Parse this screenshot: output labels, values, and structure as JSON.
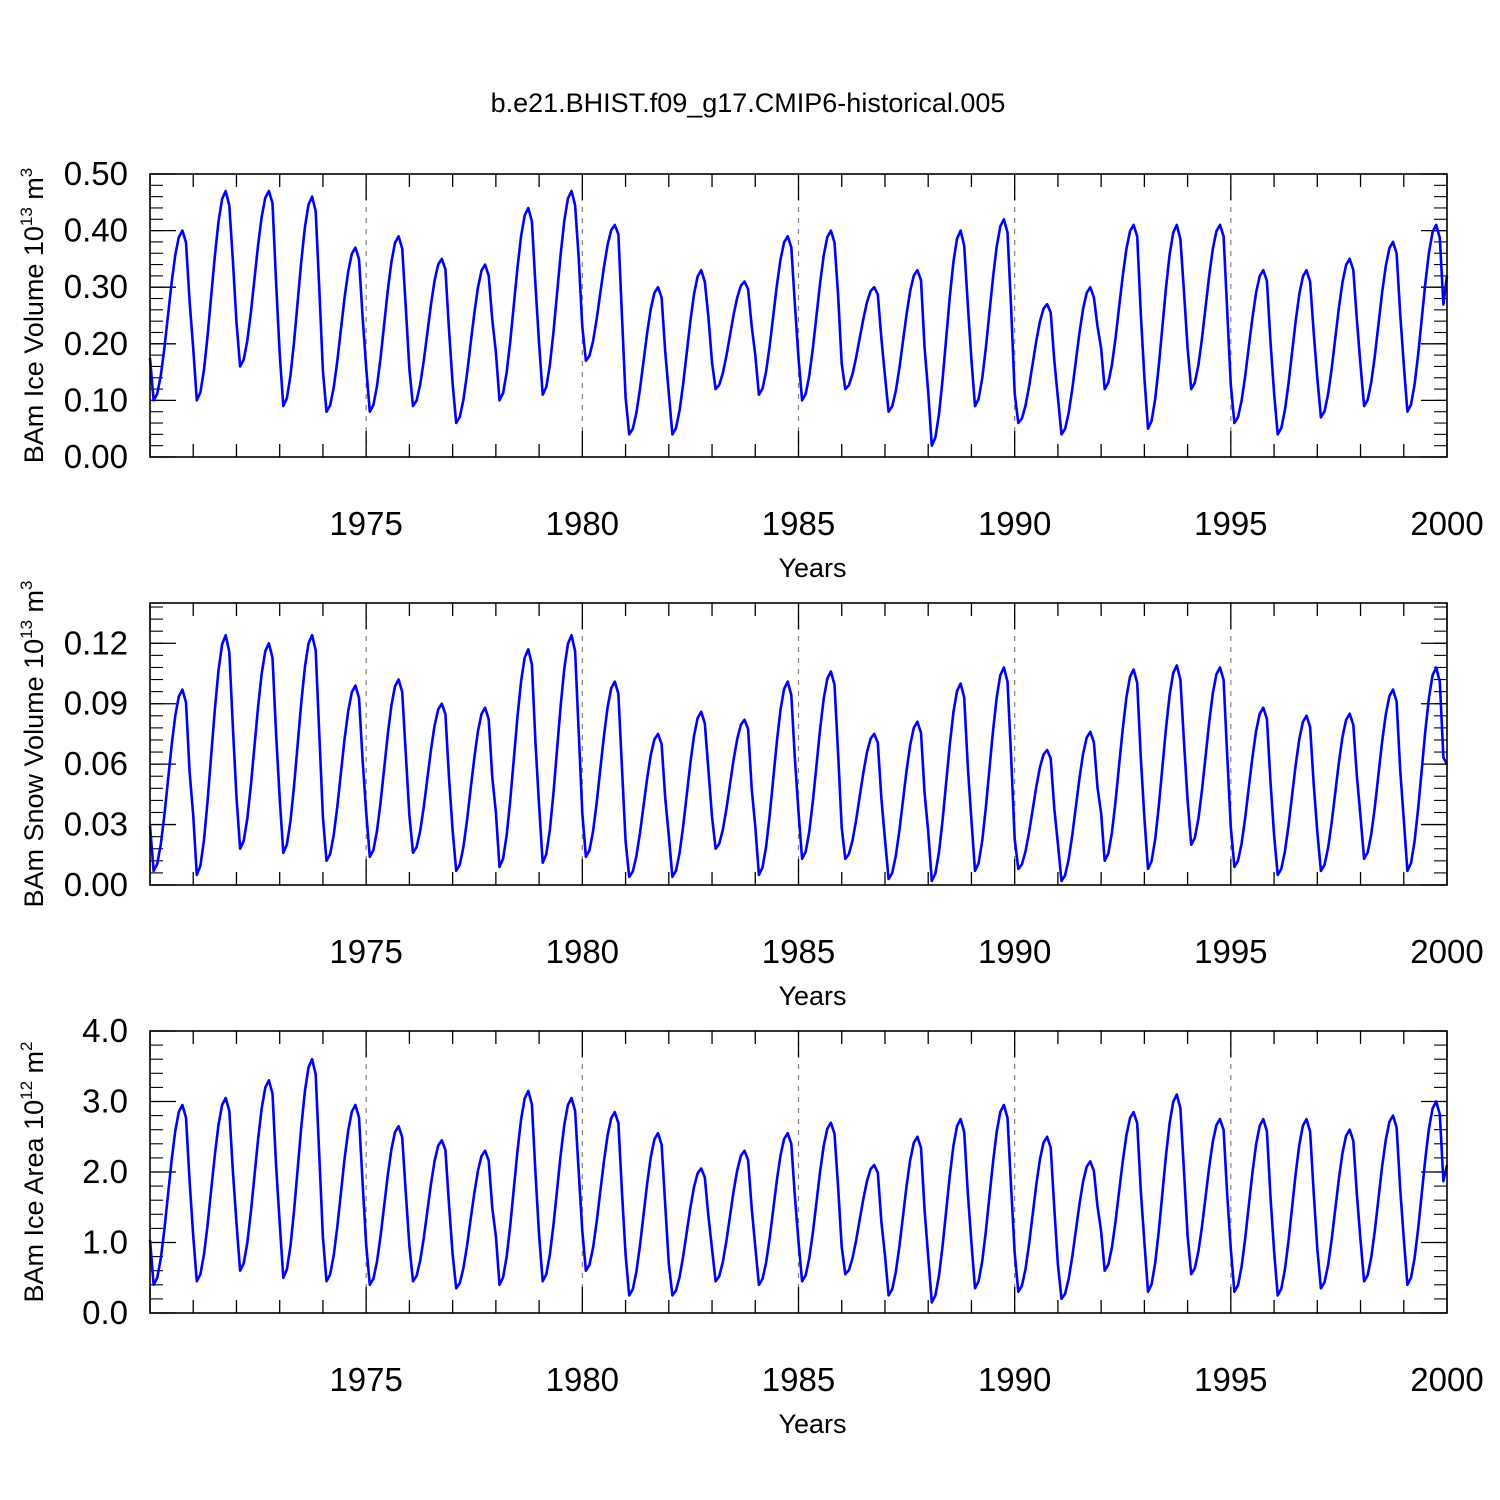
{
  "title": "b.e21.BHIST.f09_g17.CMIP6-historical.005",
  "colors": {
    "series": "#0000ff",
    "axis": "#000000",
    "refline": "#808080"
  },
  "chart_data": [
    {
      "type": "line",
      "title": "b.e21.BHIST.f09_g17.CMIP6-historical.005",
      "xlabel": "Years",
      "ylabel": {
        "prefix": "BAm Ice Volume 10",
        "exp": "13",
        "mid": " m",
        "unit_exp": "3"
      },
      "xlim": [
        1970.0,
        2000.0
      ],
      "ylim": [
        0.0,
        0.5
      ],
      "xticks": [
        "1975",
        "1980",
        "1985",
        "1990",
        "1995",
        "2000"
      ],
      "yticks": [
        "0.00",
        "0.10",
        "0.20",
        "0.30",
        "0.40",
        "0.50"
      ],
      "grid": "dashed vertical lines at 1975, 1980, 1985, 1990, 1995",
      "series": [
        {
          "name": "BAm Ice Volume",
          "cycles": [
            {
              "min": 0.1,
              "max": 0.4
            },
            {
              "min": 0.1,
              "max": 0.47
            },
            {
              "min": 0.16,
              "max": 0.47
            },
            {
              "min": 0.09,
              "max": 0.46
            },
            {
              "min": 0.08,
              "max": 0.37
            },
            {
              "min": 0.08,
              "max": 0.39
            },
            {
              "min": 0.09,
              "max": 0.35
            },
            {
              "min": 0.06,
              "max": 0.34
            },
            {
              "min": 0.1,
              "max": 0.44
            },
            {
              "min": 0.11,
              "max": 0.47
            },
            {
              "min": 0.17,
              "max": 0.41
            },
            {
              "min": 0.04,
              "max": 0.3
            },
            {
              "min": 0.04,
              "max": 0.33
            },
            {
              "min": 0.12,
              "max": 0.31
            },
            {
              "min": 0.11,
              "max": 0.39
            },
            {
              "min": 0.1,
              "max": 0.4
            },
            {
              "min": 0.12,
              "max": 0.3
            },
            {
              "min": 0.08,
              "max": 0.33
            },
            {
              "min": 0.02,
              "max": 0.4
            },
            {
              "min": 0.09,
              "max": 0.42
            },
            {
              "min": 0.06,
              "max": 0.27
            },
            {
              "min": 0.04,
              "max": 0.3
            },
            {
              "min": 0.12,
              "max": 0.41
            },
            {
              "min": 0.05,
              "max": 0.41
            },
            {
              "min": 0.12,
              "max": 0.41
            },
            {
              "min": 0.06,
              "max": 0.33
            },
            {
              "min": 0.04,
              "max": 0.33
            },
            {
              "min": 0.07,
              "max": 0.35
            },
            {
              "min": 0.09,
              "max": 0.38
            },
            {
              "min": 0.08,
              "max": 0.41
            }
          ],
          "end_value": 0.32
        }
      ]
    },
    {
      "type": "line",
      "xlabel": "Years",
      "ylabel": {
        "prefix": "BAm Snow Volume 10",
        "exp": "13",
        "mid": " m",
        "unit_exp": "3"
      },
      "xlim": [
        1970.0,
        2000.0
      ],
      "ylim": [
        0.0,
        0.14
      ],
      "xticks": [
        "1975",
        "1980",
        "1985",
        "1990",
        "1995",
        "2000"
      ],
      "yticks": [
        "0.00",
        "0.03",
        "0.06",
        "0.09",
        "0.12"
      ],
      "grid": "dashed vertical lines at 1975, 1980, 1985, 1990, 1995",
      "series": [
        {
          "name": "BAm Snow Volume",
          "cycles": [
            {
              "min": 0.007,
              "max": 0.097
            },
            {
              "min": 0.005,
              "max": 0.124
            },
            {
              "min": 0.018,
              "max": 0.12
            },
            {
              "min": 0.016,
              "max": 0.124
            },
            {
              "min": 0.012,
              "max": 0.099
            },
            {
              "min": 0.014,
              "max": 0.102
            },
            {
              "min": 0.016,
              "max": 0.09
            },
            {
              "min": 0.007,
              "max": 0.088
            },
            {
              "min": 0.009,
              "max": 0.117
            },
            {
              "min": 0.011,
              "max": 0.124
            },
            {
              "min": 0.014,
              "max": 0.101
            },
            {
              "min": 0.004,
              "max": 0.075
            },
            {
              "min": 0.004,
              "max": 0.086
            },
            {
              "min": 0.018,
              "max": 0.082
            },
            {
              "min": 0.005,
              "max": 0.101
            },
            {
              "min": 0.013,
              "max": 0.106
            },
            {
              "min": 0.013,
              "max": 0.075
            },
            {
              "min": 0.003,
              "max": 0.081
            },
            {
              "min": 0.002,
              "max": 0.1
            },
            {
              "min": 0.007,
              "max": 0.108
            },
            {
              "min": 0.008,
              "max": 0.067
            },
            {
              "min": 0.002,
              "max": 0.076
            },
            {
              "min": 0.012,
              "max": 0.107
            },
            {
              "min": 0.008,
              "max": 0.109
            },
            {
              "min": 0.02,
              "max": 0.108
            },
            {
              "min": 0.009,
              "max": 0.088
            },
            {
              "min": 0.005,
              "max": 0.084
            },
            {
              "min": 0.007,
              "max": 0.085
            },
            {
              "min": 0.013,
              "max": 0.097
            },
            {
              "min": 0.007,
              "max": 0.108
            }
          ],
          "end_value": 0.06
        }
      ]
    },
    {
      "type": "line",
      "xlabel": "Years",
      "ylabel": {
        "prefix": "BAm Ice Area 10",
        "exp": "12",
        "mid": " m",
        "unit_exp": "2"
      },
      "xlim": [
        1970.0,
        2000.0
      ],
      "ylim": [
        0.0,
        4.0
      ],
      "xticks": [
        "1975",
        "1980",
        "1985",
        "1990",
        "1995",
        "2000"
      ],
      "yticks": [
        "0.0",
        "1.0",
        "2.0",
        "3.0",
        "4.0"
      ],
      "grid": "dashed vertical lines at 1975, 1980, 1985, 1990, 1995",
      "series": [
        {
          "name": "BAm Ice Area",
          "cycles": [
            {
              "min": 0.4,
              "max": 2.95
            },
            {
              "min": 0.45,
              "max": 3.05
            },
            {
              "min": 0.6,
              "max": 3.3
            },
            {
              "min": 0.5,
              "max": 3.6
            },
            {
              "min": 0.45,
              "max": 2.95
            },
            {
              "min": 0.4,
              "max": 2.65
            },
            {
              "min": 0.45,
              "max": 2.45
            },
            {
              "min": 0.35,
              "max": 2.3
            },
            {
              "min": 0.4,
              "max": 3.15
            },
            {
              "min": 0.45,
              "max": 3.05
            },
            {
              "min": 0.6,
              "max": 2.85
            },
            {
              "min": 0.25,
              "max": 2.55
            },
            {
              "min": 0.25,
              "max": 2.05
            },
            {
              "min": 0.45,
              "max": 2.3
            },
            {
              "min": 0.4,
              "max": 2.55
            },
            {
              "min": 0.45,
              "max": 2.7
            },
            {
              "min": 0.55,
              "max": 2.1
            },
            {
              "min": 0.25,
              "max": 2.5
            },
            {
              "min": 0.15,
              "max": 2.75
            },
            {
              "min": 0.35,
              "max": 2.95
            },
            {
              "min": 0.3,
              "max": 2.5
            },
            {
              "min": 0.2,
              "max": 2.15
            },
            {
              "min": 0.6,
              "max": 2.85
            },
            {
              "min": 0.3,
              "max": 3.1
            },
            {
              "min": 0.55,
              "max": 2.75
            },
            {
              "min": 0.3,
              "max": 2.75
            },
            {
              "min": 0.25,
              "max": 2.75
            },
            {
              "min": 0.35,
              "max": 2.6
            },
            {
              "min": 0.45,
              "max": 2.8
            },
            {
              "min": 0.4,
              "max": 3.0
            }
          ],
          "end_value": 2.1
        }
      ]
    }
  ]
}
